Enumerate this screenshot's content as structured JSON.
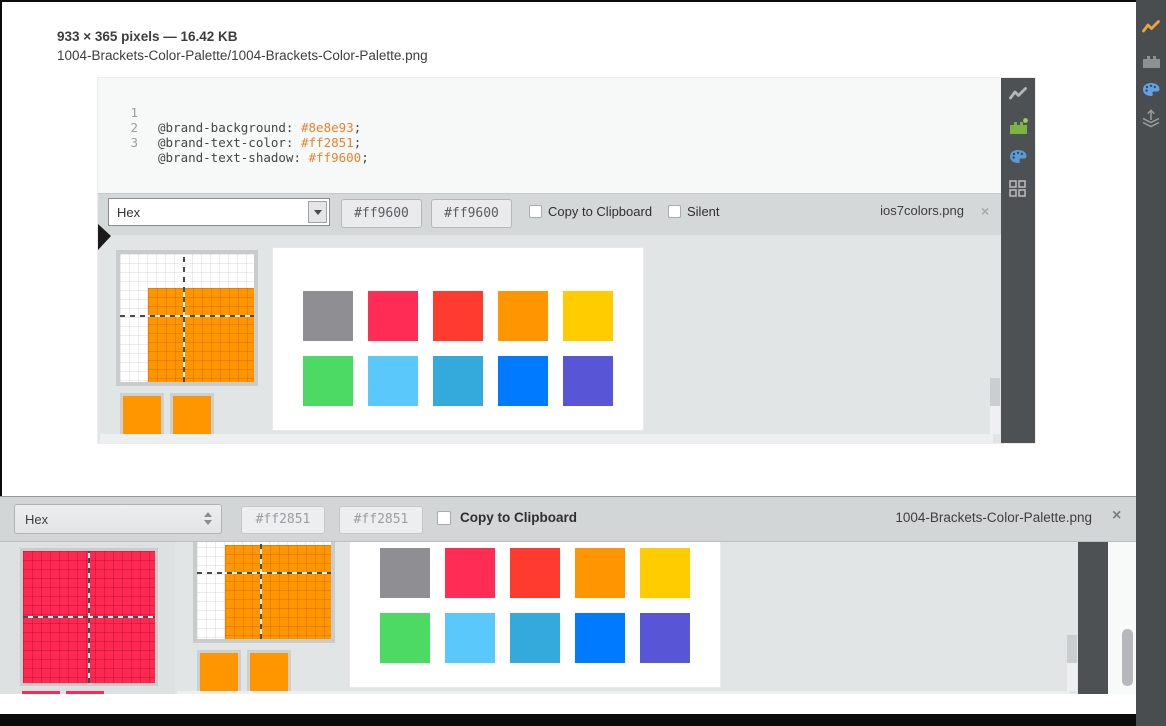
{
  "image_viewer": {
    "meta": "933 × 365 pixels — 16.42 KB",
    "path": "1004-Brackets-Color-Palette/1004-Brackets-Color-Palette.png"
  },
  "embedded_screenshot": {
    "code_lines": [
      {
        "num": "1",
        "prop": "@brand-background: ",
        "value": "#8e8e93",
        "semi": ";"
      },
      {
        "num": "2",
        "prop": "@brand-text-color: ",
        "value": "#ff2851",
        "semi": ";"
      },
      {
        "num": "3",
        "prop": "@brand-text-shadow: ",
        "value": "#ff9600",
        "semi": ";"
      }
    ],
    "toolbar": {
      "format": "Hex",
      "hex_value_1": "#ff9600",
      "hex_value_2": "#ff9600",
      "copy_label": "Copy to Clipboard",
      "silent_label": "Silent",
      "title": "ios7colors.png",
      "close": "×"
    },
    "magnified_color": "#ff9600"
  },
  "palette_panel": {
    "format": "Hex",
    "hex_value_1": "#ff2851",
    "hex_value_2": "#ff2851",
    "copy_label": "Copy to Clipboard",
    "title": "1004-Brackets-Color-Palette.png",
    "close": "×",
    "magnified_color": "#ff2851"
  },
  "ios7_palette": [
    "#8e8e93",
    "#ff2d55",
    "#ff3b30",
    "#ff9500",
    "#ffcc00",
    "#4cd964",
    "#5ac8fa",
    "#34aadc",
    "#007aff",
    "#5856d6"
  ],
  "icons": {
    "outer_toolbar": [
      "health-report-icon",
      "extension-manager-icon",
      "color-palette-icon",
      "layers-upload-icon"
    ],
    "inner_toolbar": [
      "health-report-icon",
      "extension-manager-icon",
      "color-palette-icon",
      "grid-icon"
    ]
  },
  "accent_colors": {
    "orange": "#ff9600",
    "pink": "#ff2851",
    "sidebar_dark": "#4e5154",
    "toolbar_dark": "#4a4d50"
  }
}
